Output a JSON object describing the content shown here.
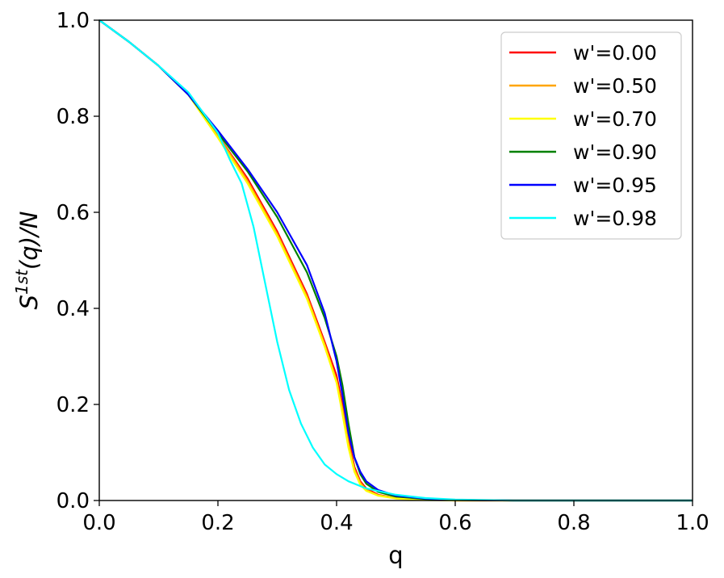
{
  "chart_data": {
    "type": "line",
    "xlabel": "q",
    "ylabel": "S^{1st}(q)/N",
    "ylabel_parts": {
      "base": "S",
      "sup": "1st",
      "rest": "(q)/N"
    },
    "xlim": [
      0.0,
      1.0
    ],
    "ylim": [
      0.0,
      1.0
    ],
    "xticks": [
      "0.0",
      "0.2",
      "0.4",
      "0.6",
      "0.8",
      "1.0"
    ],
    "yticks": [
      "0.0",
      "0.2",
      "0.4",
      "0.6",
      "0.8",
      "1.0"
    ],
    "grid": false,
    "legend_position": "top-right",
    "series": [
      {
        "name": "w'=0.00",
        "color": "#ff0000",
        "x": [
          0.0,
          0.05,
          0.1,
          0.15,
          0.2,
          0.25,
          0.3,
          0.35,
          0.38,
          0.4,
          0.41,
          0.42,
          0.43,
          0.44,
          0.45,
          0.47,
          0.5,
          0.55,
          0.6,
          0.7,
          0.8,
          1.0
        ],
        "y": [
          1.0,
          0.955,
          0.905,
          0.845,
          0.76,
          0.67,
          0.56,
          0.43,
          0.33,
          0.26,
          0.2,
          0.13,
          0.07,
          0.04,
          0.025,
          0.012,
          0.005,
          0.002,
          0.0,
          0.0,
          0.0,
          0.0
        ]
      },
      {
        "name": "w'=0.50",
        "color": "#ffa500",
        "x": [
          0.0,
          0.05,
          0.1,
          0.15,
          0.2,
          0.25,
          0.3,
          0.35,
          0.38,
          0.4,
          0.41,
          0.42,
          0.43,
          0.44,
          0.45,
          0.47,
          0.5,
          0.55,
          0.6,
          0.7,
          0.8,
          1.0
        ],
        "y": [
          1.0,
          0.955,
          0.905,
          0.845,
          0.76,
          0.665,
          0.555,
          0.425,
          0.325,
          0.25,
          0.19,
          0.12,
          0.065,
          0.037,
          0.022,
          0.011,
          0.005,
          0.002,
          0.0,
          0.0,
          0.0,
          0.0
        ]
      },
      {
        "name": "w'=0.70",
        "color": "#ffff00",
        "x": [
          0.0,
          0.05,
          0.1,
          0.15,
          0.2,
          0.25,
          0.3,
          0.35,
          0.38,
          0.4,
          0.41,
          0.42,
          0.43,
          0.44,
          0.45,
          0.47,
          0.5,
          0.55,
          0.6,
          0.7,
          0.8,
          1.0
        ],
        "y": [
          1.0,
          0.955,
          0.905,
          0.845,
          0.755,
          0.66,
          0.55,
          0.42,
          0.32,
          0.245,
          0.18,
          0.11,
          0.06,
          0.033,
          0.02,
          0.01,
          0.004,
          0.001,
          0.0,
          0.0,
          0.0,
          0.0
        ]
      },
      {
        "name": "w'=0.90",
        "color": "#008000",
        "x": [
          0.0,
          0.05,
          0.1,
          0.15,
          0.2,
          0.25,
          0.3,
          0.35,
          0.38,
          0.4,
          0.41,
          0.42,
          0.43,
          0.44,
          0.45,
          0.47,
          0.5,
          0.55,
          0.6,
          0.7,
          0.8,
          1.0
        ],
        "y": [
          1.0,
          0.955,
          0.905,
          0.845,
          0.765,
          0.685,
          0.59,
          0.475,
          0.38,
          0.3,
          0.24,
          0.16,
          0.09,
          0.055,
          0.035,
          0.018,
          0.008,
          0.003,
          0.001,
          0.0,
          0.0,
          0.0
        ]
      },
      {
        "name": "w'=0.95",
        "color": "#0000ff",
        "x": [
          0.0,
          0.05,
          0.1,
          0.15,
          0.2,
          0.25,
          0.3,
          0.35,
          0.38,
          0.4,
          0.41,
          0.42,
          0.43,
          0.44,
          0.45,
          0.47,
          0.5,
          0.55,
          0.6,
          0.7,
          0.8,
          1.0
        ],
        "y": [
          1.0,
          0.955,
          0.905,
          0.845,
          0.77,
          0.69,
          0.6,
          0.49,
          0.39,
          0.29,
          0.22,
          0.14,
          0.09,
          0.06,
          0.04,
          0.022,
          0.01,
          0.004,
          0.001,
          0.0,
          0.0,
          0.0
        ]
      },
      {
        "name": "w'=0.98",
        "color": "#00ffff",
        "x": [
          0.0,
          0.05,
          0.1,
          0.15,
          0.2,
          0.22,
          0.24,
          0.26,
          0.28,
          0.3,
          0.32,
          0.34,
          0.36,
          0.38,
          0.4,
          0.42,
          0.45,
          0.5,
          0.55,
          0.6,
          0.7,
          0.8,
          1.0
        ],
        "y": [
          1.0,
          0.955,
          0.905,
          0.85,
          0.765,
          0.71,
          0.66,
          0.57,
          0.45,
          0.33,
          0.23,
          0.16,
          0.11,
          0.075,
          0.055,
          0.04,
          0.025,
          0.012,
          0.005,
          0.002,
          0.0,
          0.0,
          0.0
        ]
      }
    ]
  }
}
